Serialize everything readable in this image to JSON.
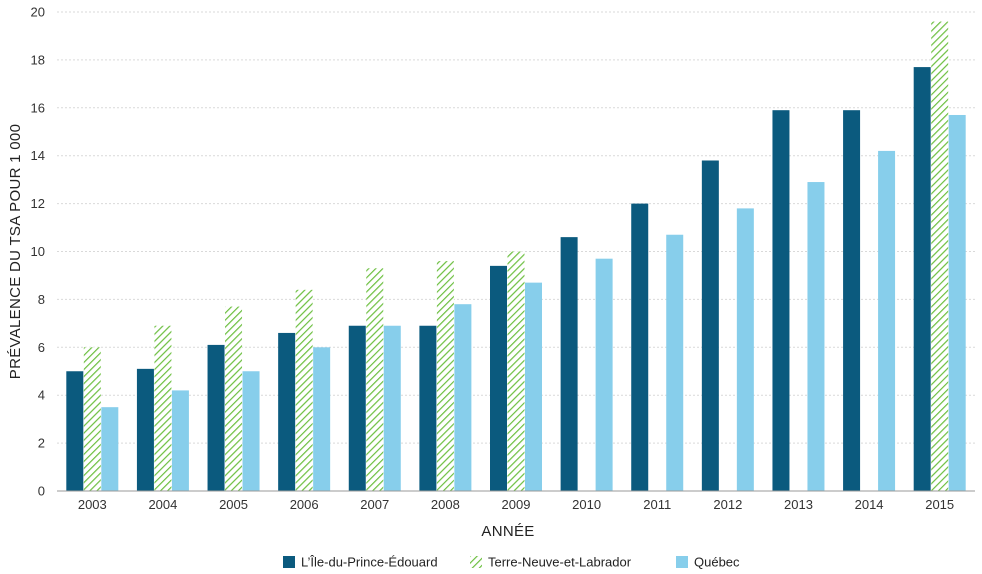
{
  "chart_data": {
    "type": "bar",
    "title": "",
    "xlabel": "ANNÉE",
    "ylabel": "PRÉVALENCE DU TSA POUR 1 000",
    "categories": [
      "2003",
      "2004",
      "2005",
      "2006",
      "2007",
      "2008",
      "2009",
      "2010",
      "2011",
      "2012",
      "2013",
      "2014",
      "2015"
    ],
    "ylim": [
      0,
      20
    ],
    "yticks": [
      "0",
      "2",
      "4",
      "6",
      "8",
      "10",
      "12",
      "14",
      "16",
      "18",
      "20"
    ],
    "grid": true,
    "legend_position": "bottom-center",
    "series": [
      {
        "name": "L’Île-du-Prince-Édouard",
        "color": "#0b5a7e",
        "pattern": "solid",
        "values": [
          5.0,
          5.1,
          6.1,
          6.6,
          6.9,
          6.9,
          9.4,
          10.6,
          12.0,
          13.8,
          15.9,
          15.9,
          17.7
        ]
      },
      {
        "name": "Terre-Neuve-et-Labrador",
        "color": "#6cbf3f",
        "pattern": "hatch",
        "values": [
          6.0,
          6.9,
          7.7,
          8.4,
          9.3,
          9.6,
          10.0,
          null,
          null,
          null,
          null,
          null,
          19.6
        ]
      },
      {
        "name": "Québec",
        "color": "#87ceeb",
        "pattern": "solid",
        "values": [
          3.5,
          4.2,
          5.0,
          6.0,
          6.9,
          7.8,
          8.7,
          9.7,
          10.7,
          11.8,
          12.9,
          14.2,
          15.7
        ]
      }
    ]
  }
}
